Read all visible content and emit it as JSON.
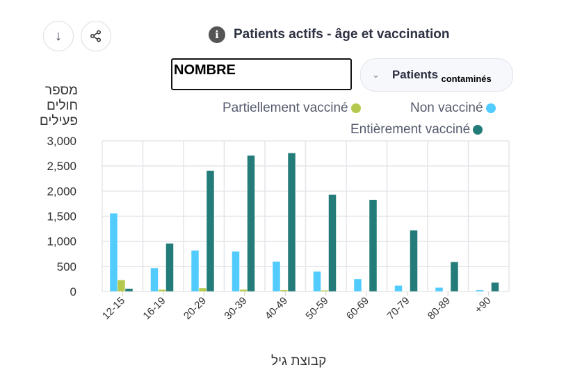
{
  "header": {
    "title": "Patients actifs - âge et vaccination",
    "info_icon": "i",
    "download_icon": "↓",
    "share_icon": "share"
  },
  "controls": {
    "metric_value": "NOMBRE",
    "select_label": "Patients",
    "select_suffix": "contaminés"
  },
  "colors": {
    "non": "#52cbff",
    "partial": "#b5c94e",
    "full": "#237c79"
  },
  "chart_data": {
    "type": "bar",
    "title": "Patients actifs - âge et vaccination",
    "ylabel": "מספר חולים פעילים",
    "xlabel": "קבוצת גיל",
    "ylim": [
      0,
      3000
    ],
    "yticks": [
      "0",
      "500",
      "1,000",
      "1,500",
      "2,000",
      "2,500",
      "3,000"
    ],
    "grid": true,
    "legend_position": "top-right",
    "categories": [
      "12-15",
      "16-19",
      "20-29",
      "30-39",
      "40-49",
      "50-59",
      "60-69",
      "70-79",
      "80-89",
      "+90"
    ],
    "series": [
      {
        "name": "Non vacciné",
        "values": [
          1560,
          470,
          820,
          800,
          600,
          400,
          250,
          120,
          80,
          30
        ]
      },
      {
        "name": "Partiellement vacciné",
        "values": [
          230,
          40,
          70,
          40,
          30,
          25,
          5,
          10,
          5,
          5
        ]
      },
      {
        "name": "Entièrement vacciné",
        "values": [
          60,
          960,
          2410,
          2710,
          2760,
          1930,
          1830,
          1220,
          590,
          180
        ]
      }
    ]
  }
}
